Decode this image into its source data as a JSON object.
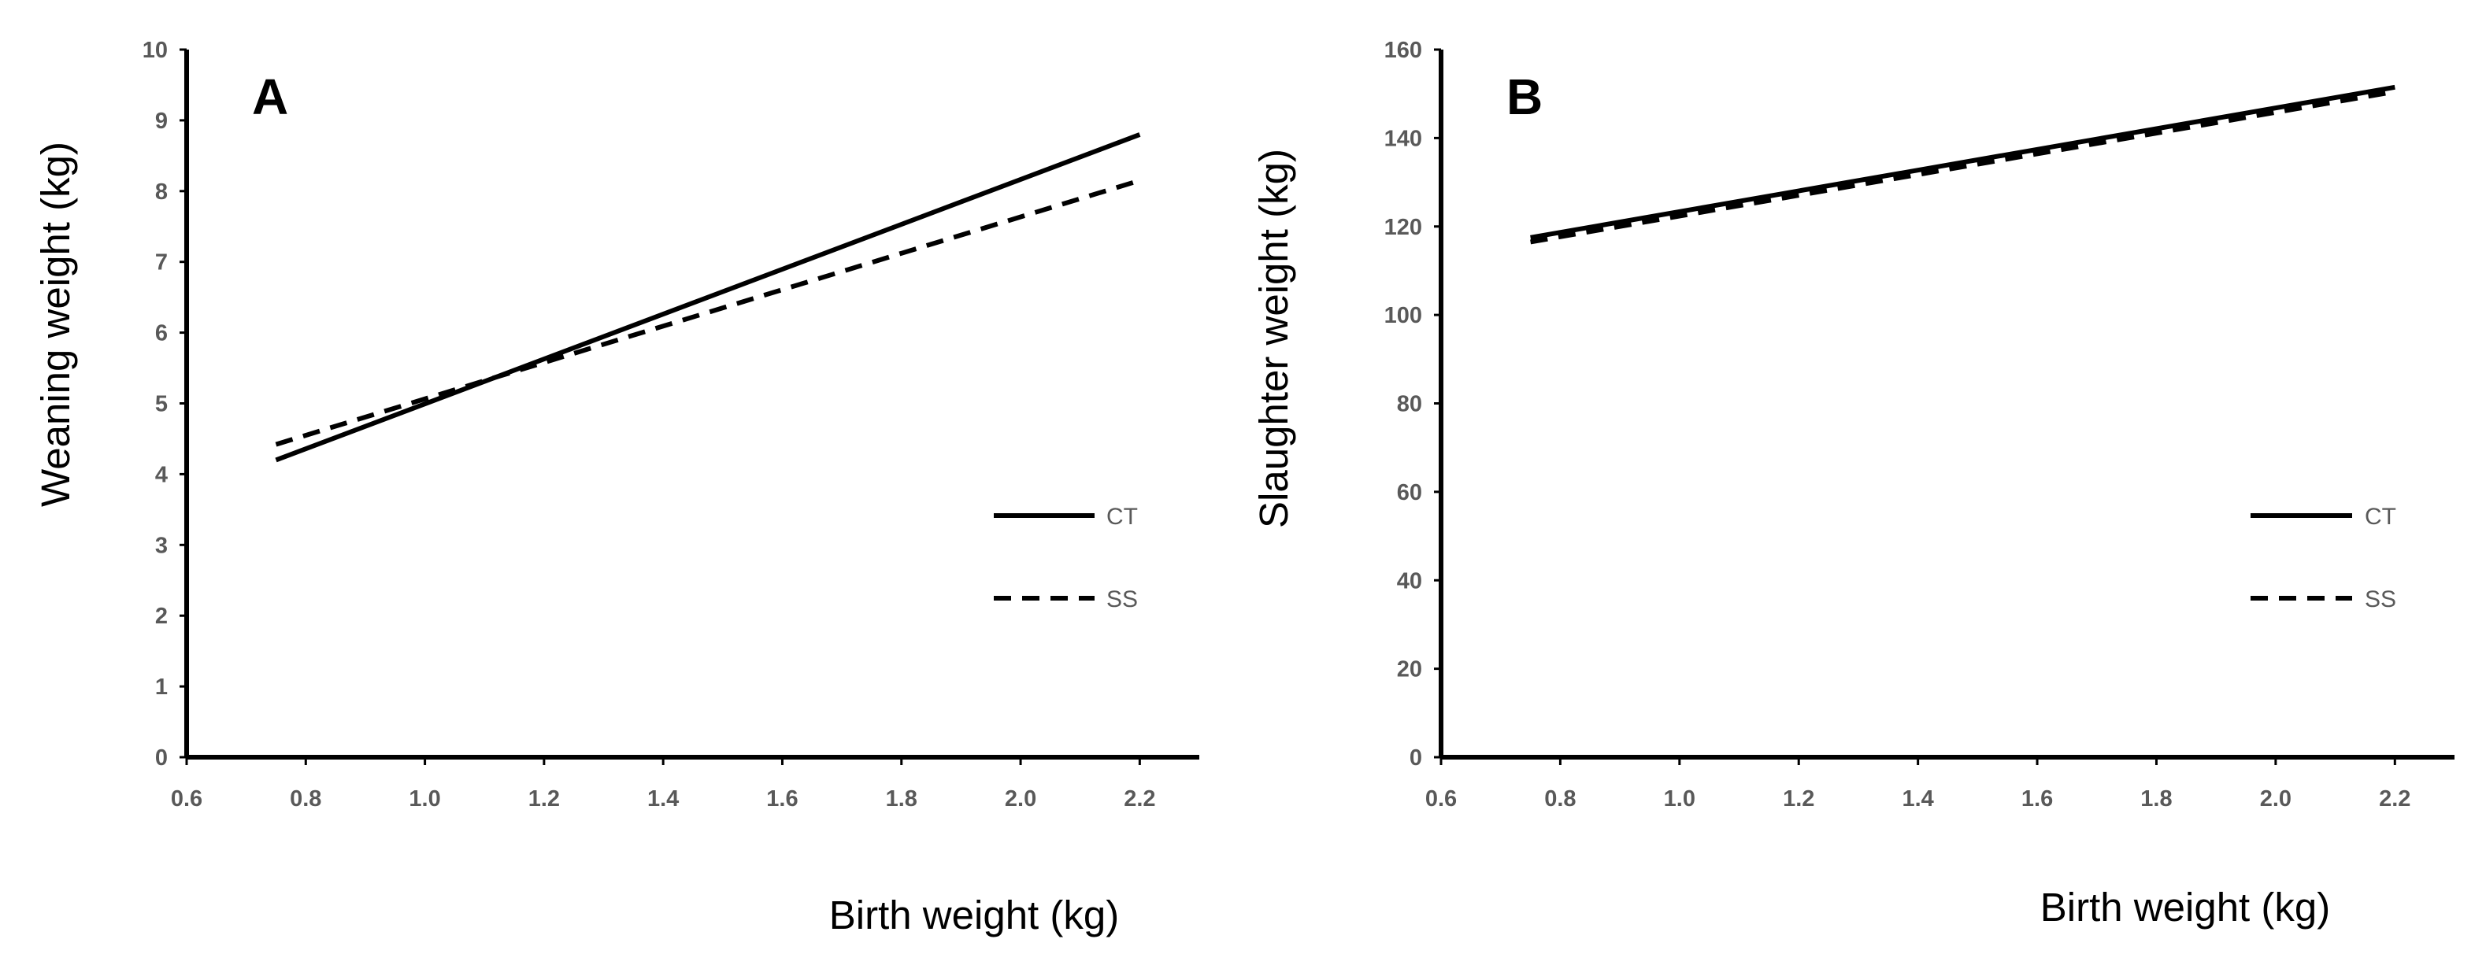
{
  "chart_data": [
    {
      "type": "line",
      "panel_label": "A",
      "title": "",
      "xlabel": "Birth weight (kg)",
      "ylabel": "Weaning weight (kg)",
      "xlim": [
        0.6,
        2.3
      ],
      "ylim": [
        0,
        10
      ],
      "x_ticks": [
        "0.6",
        "0.8",
        "1.0",
        "1.2",
        "1.4",
        "1.6",
        "1.8",
        "2.0",
        "2.2"
      ],
      "y_ticks": [
        "0",
        "1",
        "2",
        "3",
        "4",
        "5",
        "6",
        "7",
        "8",
        "9",
        "10"
      ],
      "grid": false,
      "legend_position": "right",
      "series": [
        {
          "name": "CT",
          "style": "solid",
          "x": [
            0.75,
            2.2
          ],
          "y": [
            4.2,
            8.8
          ]
        },
        {
          "name": "SS",
          "style": "dashed",
          "x": [
            0.75,
            2.2
          ],
          "y": [
            4.42,
            8.15
          ]
        }
      ]
    },
    {
      "type": "line",
      "panel_label": "B",
      "title": "",
      "xlabel": "Birth weight (kg)",
      "ylabel": "Slaughter weight (kg)",
      "xlim": [
        0.6,
        2.3
      ],
      "ylim": [
        0,
        160
      ],
      "x_ticks": [
        "0.6",
        "0.8",
        "1.0",
        "1.2",
        "1.4",
        "1.6",
        "1.8",
        "2.0",
        "2.2"
      ],
      "y_ticks": [
        "0",
        "20",
        "40",
        "60",
        "80",
        "100",
        "120",
        "140",
        "160"
      ],
      "grid": false,
      "legend_position": "right",
      "series": [
        {
          "name": "CT",
          "style": "solid",
          "x": [
            0.75,
            2.2
          ],
          "y": [
            117.5,
            151.5
          ]
        },
        {
          "name": "SS",
          "style": "dashed",
          "x": [
            0.75,
            2.2
          ],
          "y": [
            116.5,
            150.5
          ]
        }
      ]
    }
  ]
}
